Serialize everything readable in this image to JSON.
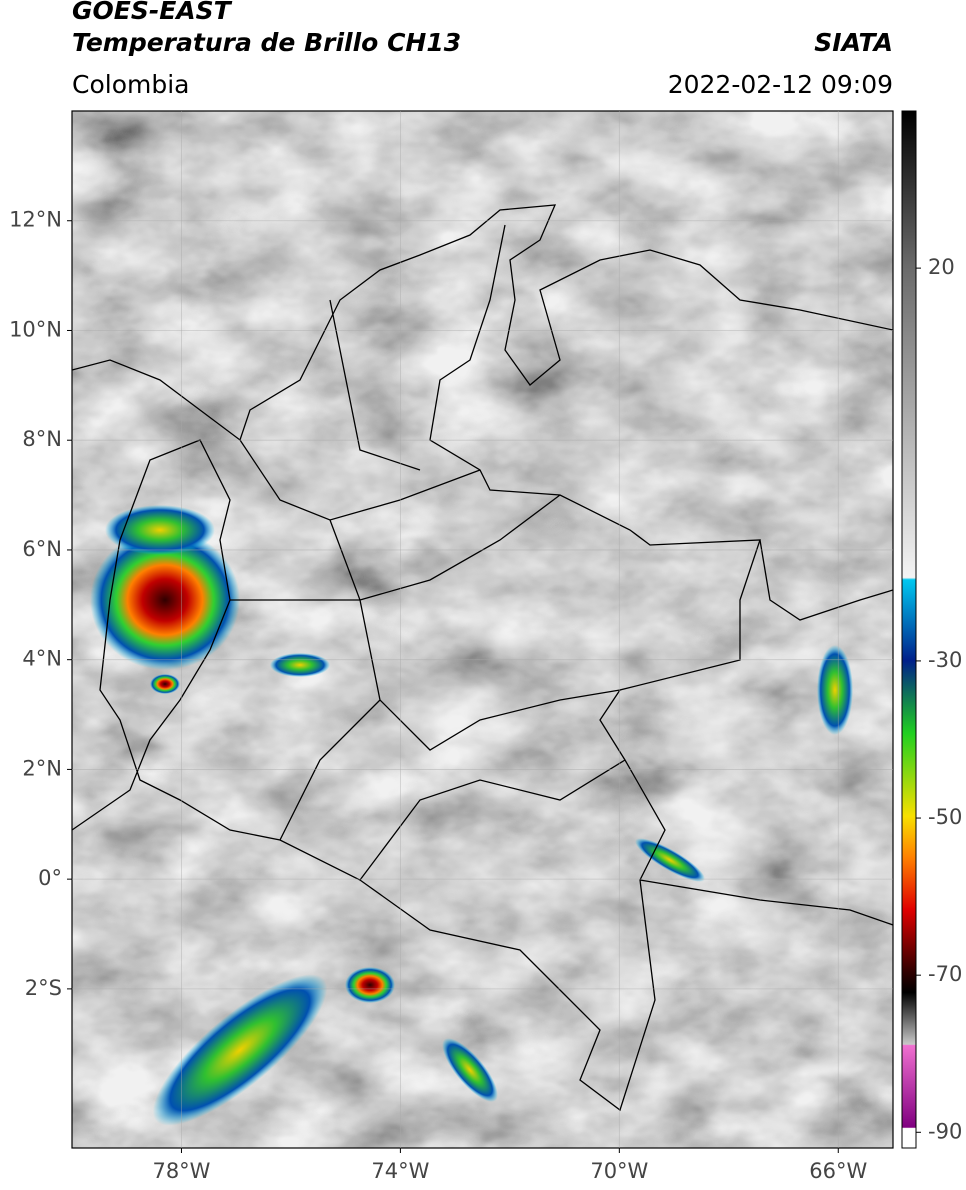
{
  "header": {
    "title": "GOES-EAST",
    "subtitle": "Temperatura de Brillo CH13",
    "source": "SIATA",
    "region": "Colombia",
    "datetime": "2022-02-12 09:09"
  },
  "map": {
    "xlim": [
      -80,
      -65
    ],
    "ylim": [
      -4.9,
      14
    ],
    "grid": true,
    "xticks": [
      {
        "value": -78,
        "label": "78°W"
      },
      {
        "value": -74,
        "label": "74°W"
      },
      {
        "value": -70,
        "label": "70°W"
      },
      {
        "value": -66,
        "label": "66°W"
      }
    ],
    "yticks": [
      {
        "value": 12,
        "label": "12°N"
      },
      {
        "value": 10,
        "label": "10°N"
      },
      {
        "value": 8,
        "label": "8°N"
      },
      {
        "value": 6,
        "label": "6°N"
      },
      {
        "value": 4,
        "label": "4°N"
      },
      {
        "value": 2,
        "label": "2°N"
      },
      {
        "value": 0,
        "label": "0°"
      },
      {
        "value": -2,
        "label": "2°S"
      }
    ]
  },
  "colorbar": {
    "lim": [
      -92,
      40
    ],
    "ticks": [
      20,
      -30,
      -50,
      -70,
      -90
    ]
  }
}
